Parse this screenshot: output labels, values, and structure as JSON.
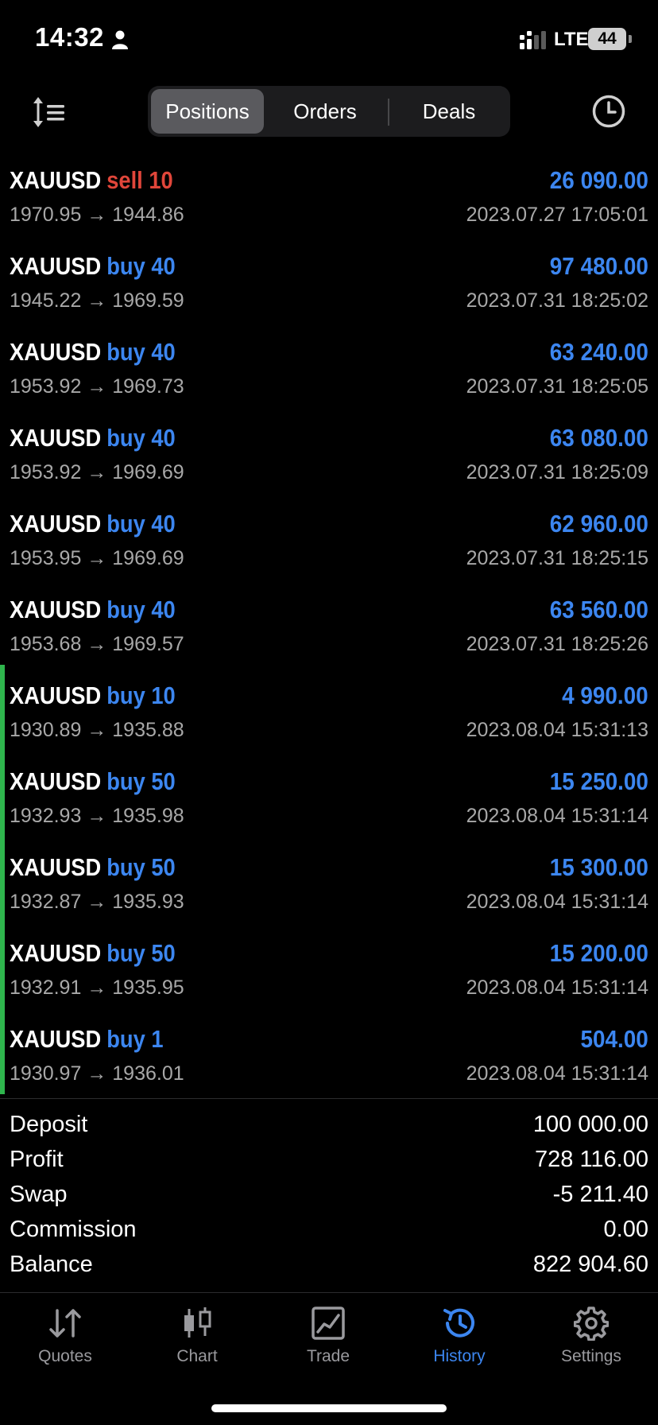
{
  "status_bar": {
    "time": "14:32",
    "network": "LTE",
    "battery": "44"
  },
  "header": {
    "tabs": [
      {
        "label": "Positions",
        "active": true
      },
      {
        "label": "Orders",
        "active": false
      },
      {
        "label": "Deals",
        "active": false
      }
    ],
    "left_icon": "sort-icon",
    "right_icon": "clock-icon"
  },
  "positions": [
    {
      "symbol": "XAUUSD",
      "side": "sell 10",
      "type": "sell",
      "prices": "1970.95 → 1944.86",
      "profit": "26 090.00",
      "date": "2023.07.27 17:05:01",
      "marked": false
    },
    {
      "symbol": "XAUUSD",
      "side": "buy 40",
      "type": "buy",
      "prices": "1945.22 → 1969.59",
      "profit": "97 480.00",
      "date": "2023.07.31 18:25:02",
      "marked": false
    },
    {
      "symbol": "XAUUSD",
      "side": "buy 40",
      "type": "buy",
      "prices": "1953.92 → 1969.73",
      "profit": "63 240.00",
      "date": "2023.07.31 18:25:05",
      "marked": false
    },
    {
      "symbol": "XAUUSD",
      "side": "buy 40",
      "type": "buy",
      "prices": "1953.92 → 1969.69",
      "profit": "63 080.00",
      "date": "2023.07.31 18:25:09",
      "marked": false
    },
    {
      "symbol": "XAUUSD",
      "side": "buy 40",
      "type": "buy",
      "prices": "1953.95 → 1969.69",
      "profit": "62 960.00",
      "date": "2023.07.31 18:25:15",
      "marked": false
    },
    {
      "symbol": "XAUUSD",
      "side": "buy 40",
      "type": "buy",
      "prices": "1953.68 → 1969.57",
      "profit": "63 560.00",
      "date": "2023.07.31 18:25:26",
      "marked": false
    },
    {
      "symbol": "XAUUSD",
      "side": "buy 10",
      "type": "buy",
      "prices": "1930.89 → 1935.88",
      "profit": "4 990.00",
      "date": "2023.08.04 15:31:13",
      "marked": true
    },
    {
      "symbol": "XAUUSD",
      "side": "buy 50",
      "type": "buy",
      "prices": "1932.93 → 1935.98",
      "profit": "15 250.00",
      "date": "2023.08.04 15:31:14",
      "marked": true
    },
    {
      "symbol": "XAUUSD",
      "side": "buy 50",
      "type": "buy",
      "prices": "1932.87 → 1935.93",
      "profit": "15 300.00",
      "date": "2023.08.04 15:31:14",
      "marked": true
    },
    {
      "symbol": "XAUUSD",
      "side": "buy 50",
      "type": "buy",
      "prices": "1932.91 → 1935.95",
      "profit": "15 200.00",
      "date": "2023.08.04 15:31:14",
      "marked": true
    },
    {
      "symbol": "XAUUSD",
      "side": "buy 1",
      "type": "buy",
      "prices": "1930.97 → 1936.01",
      "profit": "504.00",
      "date": "2023.08.04 15:31:14",
      "marked": true
    }
  ],
  "summary": [
    {
      "label": "Deposit",
      "value": "100 000.00"
    },
    {
      "label": "Profit",
      "value": "728 116.00"
    },
    {
      "label": "Swap",
      "value": "-5 211.40"
    },
    {
      "label": "Commission",
      "value": "0.00"
    },
    {
      "label": "Balance",
      "value": "822 904.60"
    }
  ],
  "tab_bar": [
    {
      "label": "Quotes",
      "icon": "quotes-arrows-icon",
      "active": false
    },
    {
      "label": "Chart",
      "icon": "candlestick-icon",
      "active": false
    },
    {
      "label": "Trade",
      "icon": "trade-chart-icon",
      "active": false
    },
    {
      "label": "History",
      "icon": "history-clock-icon",
      "active": true
    },
    {
      "label": "Settings",
      "icon": "gear-icon",
      "active": false
    }
  ],
  "colors": {
    "buy": "#3c86f0",
    "sell": "#e0463a",
    "marker": "#2fb54d",
    "active_tab": "#3c86f0",
    "inactive_tab": "#9a9a9e"
  }
}
